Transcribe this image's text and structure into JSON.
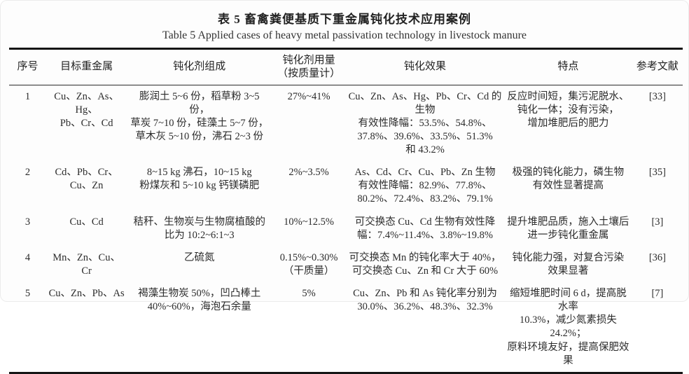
{
  "caption": {
    "cn": "表 5  畜禽粪便基质下重金属钝化技术应用案例",
    "en": "Table 5  Applied cases of heavy metal passivation technology in livestock manure"
  },
  "table": {
    "headers": [
      "序号",
      "目标重金属",
      "钝化剂组成",
      "钝化剂用量\n（按质量计）",
      "钝化效果",
      "特点",
      "参考文献"
    ],
    "rows": [
      {
        "cells": [
          "1",
          "Cu、Zn、As、Hg、\nPb、Cr、Cd",
          "膨润土 5~6 份，稻草粉 3~5 份，\n草炭 7~10 份，硅藻土 5~7 份，\n草木灰 5~10 份，沸石 2~3 份",
          "27%~41%",
          "Cu、Zn、As、Hg、Pb、Cr、Cd 的生物\n有效性降幅：53.5%、54.8%、\n37.8%、39.6%、33.5%、51.3%\n和 43.2%",
          "反应时间短，集污泥脱水、\n钝化一体；没有污染，\n增加堆肥后的肥力",
          "[33]"
        ]
      },
      {
        "cells": [
          "2",
          "Cd、Pb、Cr、\nCu、Zn",
          "8~15 kg 沸石，10~15 kg\n粉煤灰和 5~10 kg 钙镁磷肥",
          "2%~3.5%",
          "As、Cd、Cr、Cu、Pb、Zn 生物\n有效性降幅：82.9%、77.8%、\n80.2%、72.4%、83.2%、79.1%",
          "极强的钝化能力，磷生物\n有效性显著提高",
          "[35]"
        ]
      },
      {
        "cells": [
          "3",
          "Cu、Cd",
          "秸秆、生物炭与生物腐植酸的\n比为 10:2~6:1~3",
          "10%~12.5%",
          "可交换态 Cu、Cd 生物有效性降\n幅：7.4%~11.4%、3.8%~19.8%",
          "提升堆肥品质，施入土壤后\n进一步钝化重金属",
          "[3]"
        ]
      },
      {
        "cells": [
          "4",
          "Mn、Zn、Cu、\nCr",
          "乙硫氮",
          "0.15%~0.30%\n（干质量）",
          "可交换态 Mn 的钝化率大于 40%，\n可交换态 Cu、Zn 和 Cr 大于 60%",
          "钝化能力强，对复合污染\n效果显著",
          "[36]"
        ]
      },
      {
        "cells": [
          "5",
          "Cu、Zn、Pb、As",
          "褐藻生物炭 50%，凹凸棒土\n40%~60%，海泡石余量",
          "5%",
          "Cu、Zn、Pb 和 As 钝化率分别为\n30.0%、36.2%、48.3%、32.3%",
          "缩短堆肥时间 6 d，提高脱水率\n10.3%，减少氮素损失 24.2%；\n原料环境友好，提高保肥效果",
          "[7]"
        ]
      }
    ]
  }
}
